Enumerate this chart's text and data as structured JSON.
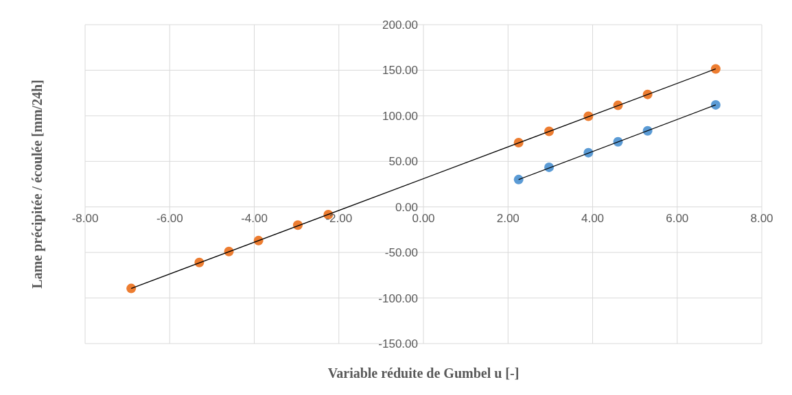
{
  "chart_data": {
    "type": "scatter",
    "xlabel": "Variable réduite de Gumbel u [-]",
    "ylabel": "Lame précipitée / écoulée [mm/24h]",
    "xlim": [
      -8,
      8
    ],
    "xticks": [
      {
        "value": -8,
        "label": "-8.00"
      },
      {
        "value": -6,
        "label": "-6.00"
      },
      {
        "value": -4,
        "label": "-4.00"
      },
      {
        "value": -2,
        "label": "-2.00"
      },
      {
        "value": 0,
        "label": "0.00"
      },
      {
        "value": 2,
        "label": "2.00"
      },
      {
        "value": 4,
        "label": "4.00"
      },
      {
        "value": 6,
        "label": "6.00"
      },
      {
        "value": 8,
        "label": "8.00"
      }
    ],
    "ylim": [
      -150,
      200
    ],
    "yticks": [
      {
        "value": -150,
        "label": "-150.00"
      },
      {
        "value": -100,
        "label": "-100.00"
      },
      {
        "value": -50,
        "label": "-50.00"
      },
      {
        "value": 0,
        "label": "0.00"
      },
      {
        "value": 50,
        "label": "50.00"
      },
      {
        "value": 100,
        "label": "100.00"
      },
      {
        "value": 150,
        "label": "150.00"
      },
      {
        "value": 200,
        "label": "200.00"
      }
    ],
    "grid": true,
    "legend": false,
    "series": [
      {
        "type": "scatter",
        "marker": "circle",
        "color": "#5b9bd5",
        "x": [
          2.25,
          2.97,
          3.9,
          4.6,
          5.3,
          6.91
        ],
        "values": [
          30,
          43.5,
          59.5,
          71.5,
          83.5,
          112
        ]
      },
      {
        "type": "scatter",
        "marker": "circle",
        "color": "#ed7d31",
        "x": [
          2.25,
          2.97,
          3.9,
          4.6,
          5.3,
          6.91,
          -6.91,
          -5.3,
          -4.6,
          -3.9,
          -2.97,
          -2.25
        ],
        "values": [
          70.5,
          83,
          99.5,
          111.5,
          123.5,
          151.5,
          -89.5,
          -61,
          -49,
          -37,
          -20,
          -8.5
        ]
      },
      {
        "type": "line",
        "marker": "none",
        "color": "#000000",
        "x": [
          2.25,
          6.91
        ],
        "values": [
          30,
          112
        ]
      },
      {
        "type": "line",
        "marker": "none",
        "color": "#000000",
        "x": [
          -6.91,
          6.91
        ],
        "values": [
          -89.5,
          151.5
        ]
      }
    ]
  }
}
